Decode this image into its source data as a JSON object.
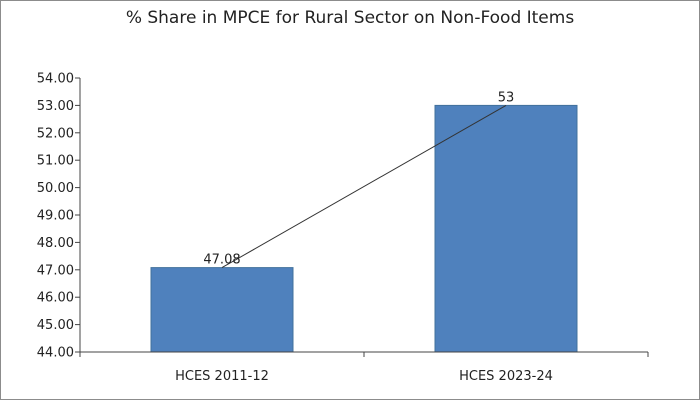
{
  "chart_data": {
    "type": "bar",
    "title": "% Share in MPCE for Rural Sector on Non-Food Items",
    "xlabel": "",
    "ylabel": "",
    "categories": [
      "HCES 2011-12",
      "HCES 2023-24"
    ],
    "values": [
      47.08,
      53
    ],
    "data_labels": [
      "47.08",
      "53"
    ],
    "ylim": [
      44,
      54
    ],
    "yticks": [
      "44.00",
      "45.00",
      "46.00",
      "47.00",
      "48.00",
      "49.00",
      "50.00",
      "51.00",
      "52.00",
      "53.00",
      "54.00"
    ],
    "bar_color": "#4f81bd",
    "bar_edge_color": "#41719c",
    "trend_line": true,
    "grid": false,
    "legend": "none"
  }
}
